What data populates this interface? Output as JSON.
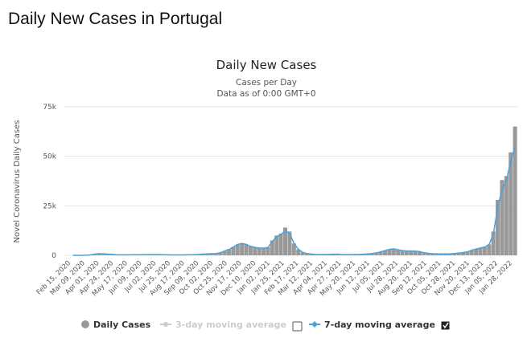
{
  "page_title": "Daily New Cases in Portugal",
  "chart_data": {
    "type": "bar",
    "title": "Daily New Cases",
    "subtitle": "Cases per Day",
    "subtitle2": "Data as of 0:00 GMT+0",
    "ylabel": "Novel Coronavirus Daily Cases",
    "xlabel": "",
    "ylim": [
      0,
      75000
    ],
    "yticks": [
      "0",
      "25k",
      "50k",
      "75k"
    ],
    "ytick_values": [
      0,
      25000,
      50000,
      75000
    ],
    "start_date": "2020-02-15",
    "interval_days": 7,
    "xtick_labels": [
      "Feb 15, 2020",
      "Mar 09, 2020",
      "Apr 01, 2020",
      "Apr 24, 2020",
      "May 17, 2020",
      "Jun 09, 2020",
      "Jul 02, 2020",
      "Jul 25, 2020",
      "Aug 17, 2020",
      "Sep 09, 2020",
      "Oct 02, 2020",
      "Oct 25, 2020",
      "Nov 17, 2020",
      "Dec 10, 2020",
      "Jan 02, 2021",
      "Jan 25, 2021",
      "Feb 17, 2021",
      "Mar 12, 2021",
      "Apr 04, 2021",
      "Apr 27, 2021",
      "May 20, 2021",
      "Jun 12, 2021",
      "Jul 05, 2021",
      "Jul 28, 2021",
      "Aug 20, 2021",
      "Sep 12, 2021",
      "Oct 05, 2021",
      "Oct 28, 2021",
      "Nov 20, 2021",
      "Dec 13, 2021",
      "Jan 05, 2022",
      "Jan 28, 2022"
    ],
    "series": [
      {
        "name": "Daily Cases",
        "color": "#999999",
        "values": [
          0,
          0,
          2,
          30,
          200,
          600,
          800,
          750,
          600,
          500,
          300,
          250,
          250,
          230,
          280,
          300,
          320,
          330,
          350,
          330,
          350,
          300,
          250,
          200,
          180,
          200,
          250,
          300,
          350,
          450,
          600,
          700,
          800,
          900,
          1300,
          2200,
          3000,
          4200,
          5500,
          6000,
          5500,
          4500,
          4000,
          3700,
          3600,
          4000,
          7500,
          10000,
          11000,
          14000,
          12000,
          6000,
          3000,
          1500,
          900,
          600,
          450,
          400,
          400,
          450,
          500,
          550,
          400,
          380,
          380,
          400,
          450,
          550,
          700,
          900,
          1200,
          1800,
          2400,
          3000,
          3300,
          2800,
          2400,
          2200,
          2200,
          2100,
          1900,
          1300,
          1000,
          800,
          700,
          700,
          700,
          750,
          900,
          1100,
          1400,
          1800,
          2600,
          3200,
          3700,
          4200,
          5500,
          12000,
          28000,
          38000,
          40000,
          52000,
          65000
        ]
      },
      {
        "name": "7-day moving average",
        "color": "#4aa3d8",
        "values": [
          0,
          0,
          2,
          30,
          200,
          600,
          800,
          750,
          600,
          500,
          300,
          250,
          250,
          230,
          280,
          300,
          320,
          330,
          350,
          330,
          350,
          300,
          250,
          200,
          180,
          200,
          250,
          300,
          350,
          450,
          600,
          700,
          800,
          900,
          1300,
          2200,
          3000,
          4200,
          5500,
          6000,
          5500,
          4500,
          4000,
          3700,
          3600,
          4000,
          7000,
          9500,
          10500,
          12500,
          11000,
          6000,
          3000,
          1500,
          900,
          600,
          450,
          400,
          400,
          450,
          500,
          550,
          400,
          380,
          380,
          400,
          450,
          550,
          700,
          900,
          1200,
          1800,
          2400,
          3000,
          3300,
          2800,
          2400,
          2200,
          2200,
          2100,
          1900,
          1300,
          1000,
          800,
          700,
          700,
          700,
          750,
          900,
          1100,
          1400,
          1800,
          2600,
          3200,
          3700,
          4200,
          5500,
          11000,
          25000,
          33000,
          38000,
          48000,
          55000
        ]
      }
    ],
    "legend": {
      "position": "bottom",
      "items": [
        {
          "label": "Daily Cases",
          "color": "#999999"
        },
        {
          "label": "3-day moving average",
          "color": "#cccccc",
          "enabled": false
        },
        {
          "label": "7-day moving average",
          "color": "#4aa3d8",
          "enabled": true
        }
      ]
    }
  }
}
